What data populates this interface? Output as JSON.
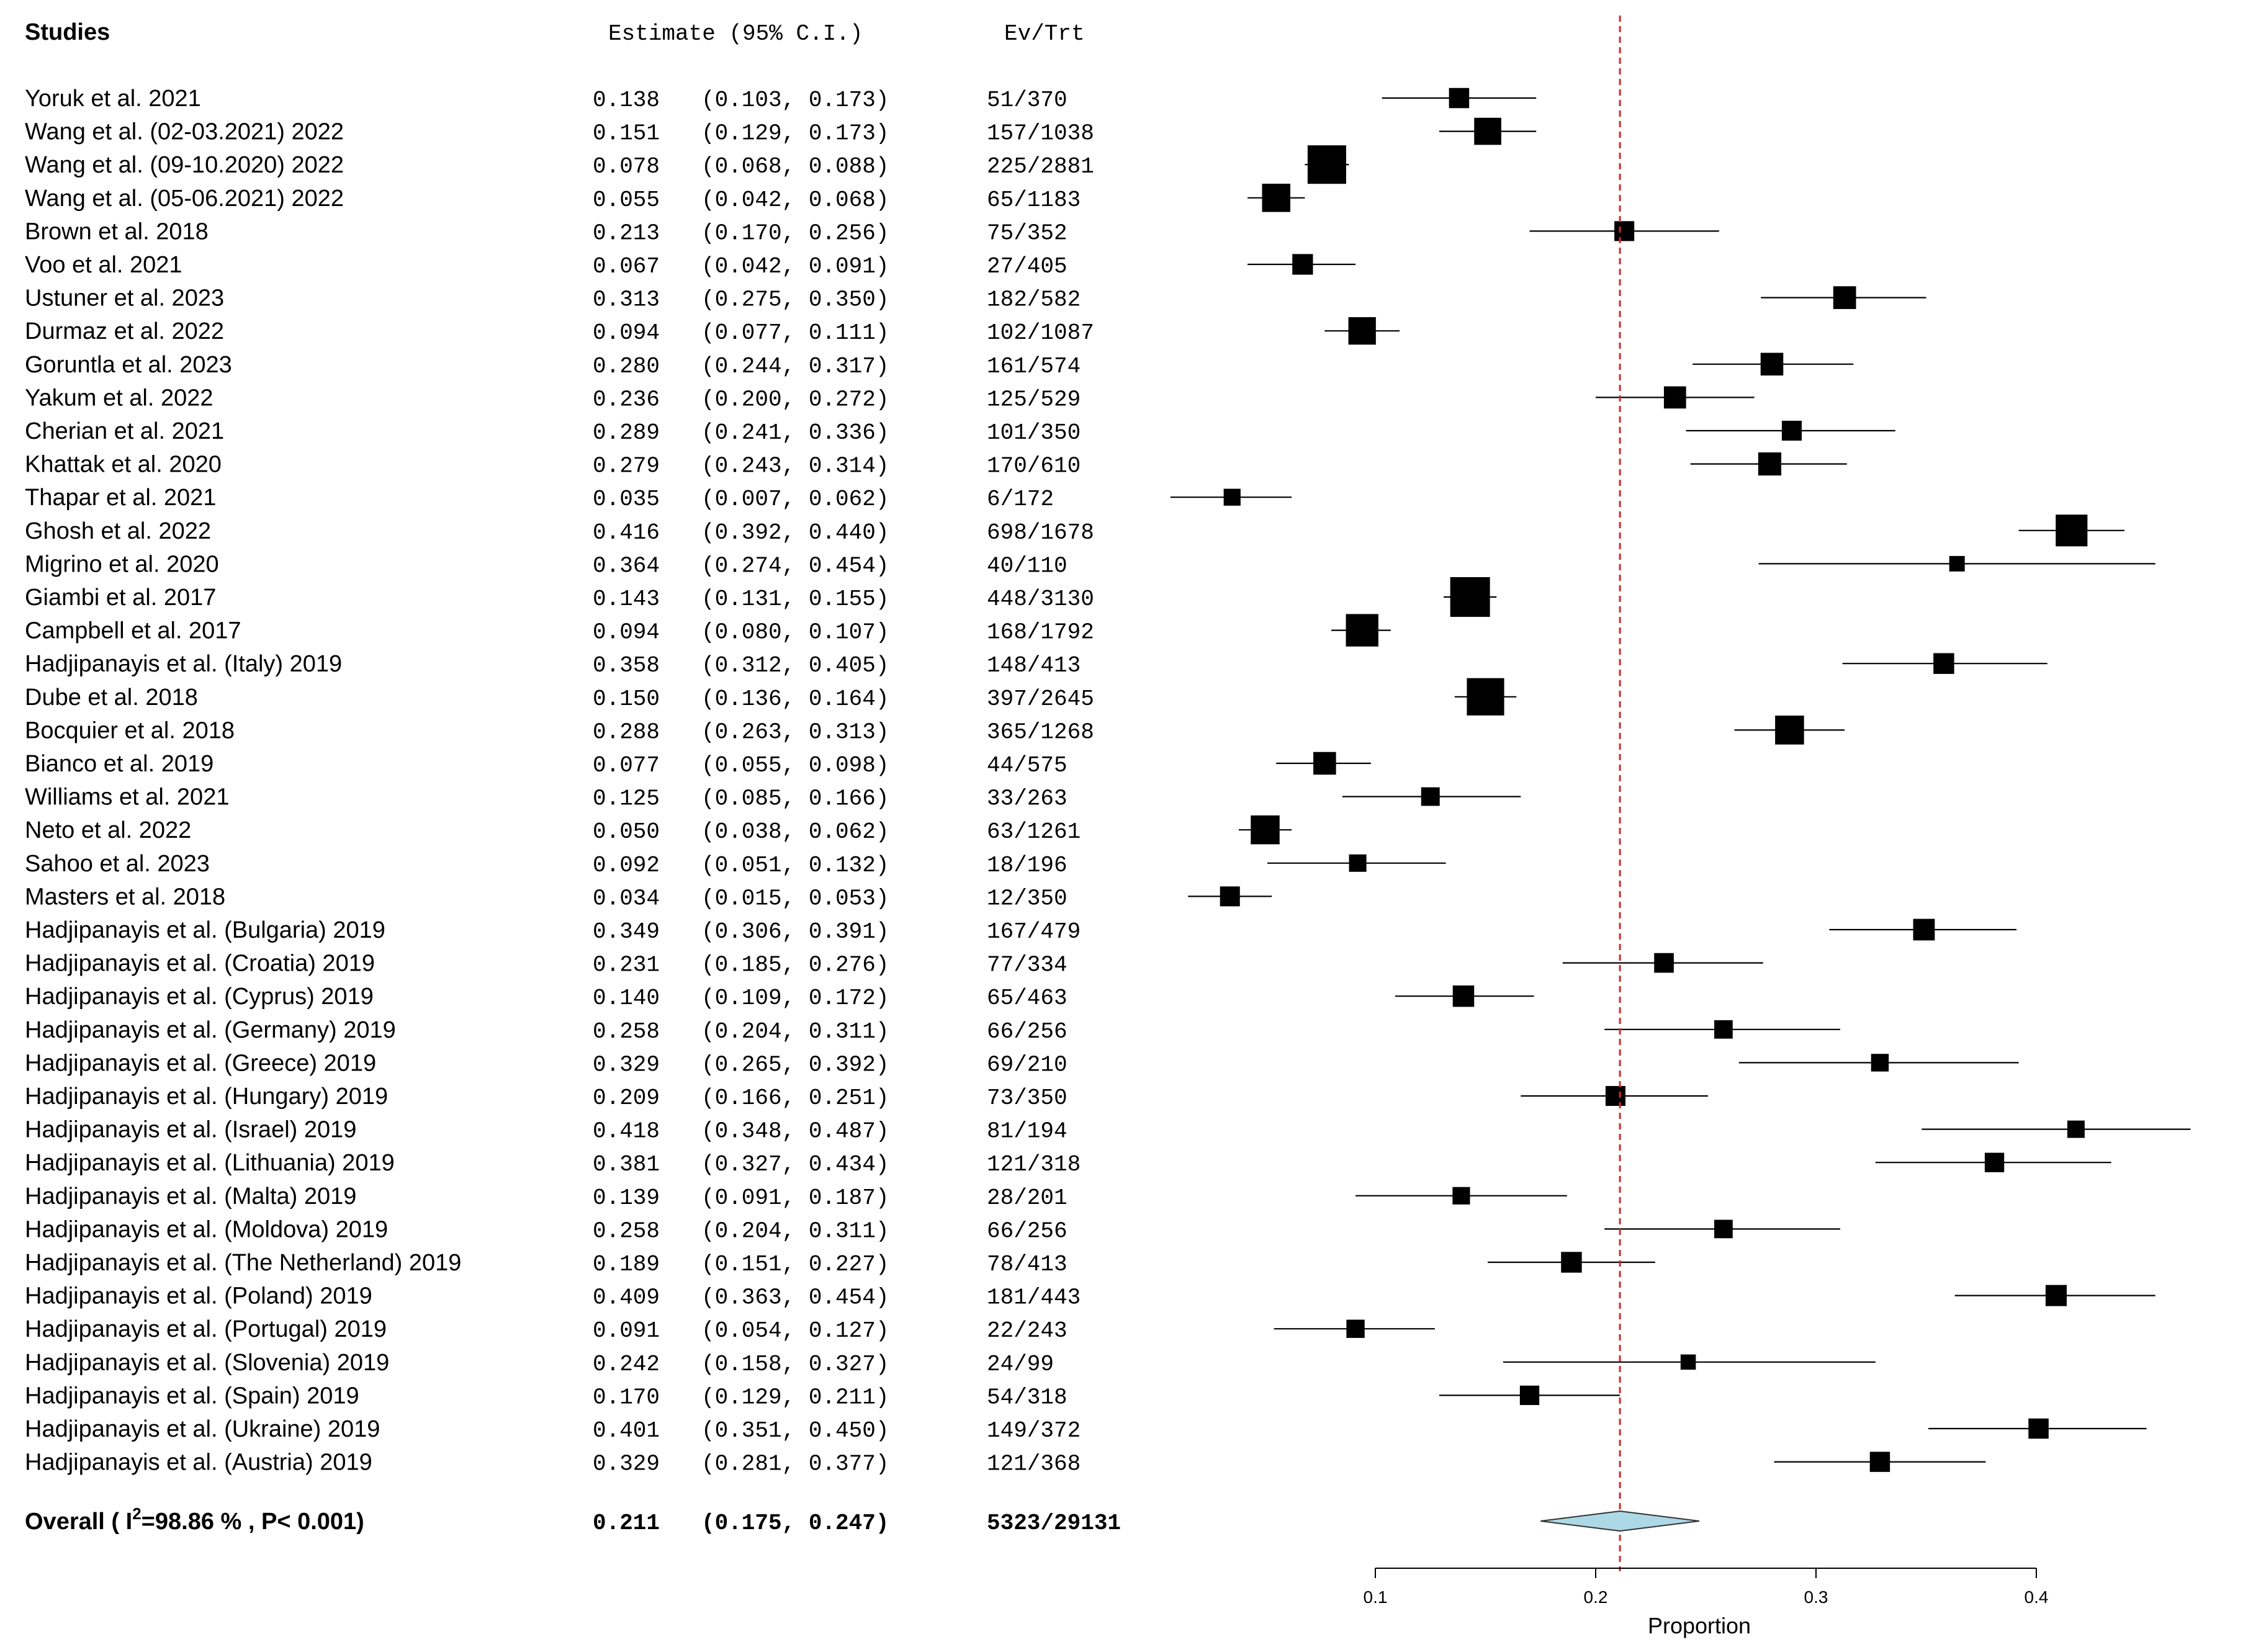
{
  "headers": {
    "studies": "Studies",
    "estimate": "Estimate (95% C.I.)",
    "evtrt": "Ev/Trt"
  },
  "chart_data": {
    "type": "forest",
    "xlabel": "Proportion",
    "xlim": [
      0.0,
      0.47
    ],
    "xticks": [
      0.1,
      0.2,
      0.3,
      0.4
    ],
    "xtick_labels": [
      "0.1",
      "0.2",
      "0.3",
      "0.4"
    ],
    "reference_line": 0.211,
    "reference_line_color": "#d62728",
    "marker_color": "#000000",
    "diamond_color": "#add8e6",
    "studies": [
      {
        "label": "Yoruk et al. 2021",
        "estimate": 0.138,
        "lower": 0.103,
        "upper": 0.173,
        "est_text": "0.138",
        "ci_text": "(0.103, 0.173)",
        "evtrt": "51/370",
        "n": 370
      },
      {
        "label": "Wang et al. (02-03.2021) 2022",
        "estimate": 0.151,
        "lower": 0.129,
        "upper": 0.173,
        "est_text": "0.151",
        "ci_text": "(0.129, 0.173)",
        "evtrt": "157/1038",
        "n": 1038
      },
      {
        "label": "Wang et al. (09-10.2020) 2022",
        "estimate": 0.078,
        "lower": 0.068,
        "upper": 0.088,
        "est_text": "0.078",
        "ci_text": "(0.068, 0.088)",
        "evtrt": "225/2881",
        "n": 2881
      },
      {
        "label": "Wang et al. (05-06.2021) 2022",
        "estimate": 0.055,
        "lower": 0.042,
        "upper": 0.068,
        "est_text": "0.055",
        "ci_text": "(0.042, 0.068)",
        "evtrt": "65/1183",
        "n": 1183
      },
      {
        "label": "Brown et al. 2018",
        "estimate": 0.213,
        "lower": 0.17,
        "upper": 0.256,
        "est_text": "0.213",
        "ci_text": "(0.170, 0.256)",
        "evtrt": "75/352",
        "n": 352
      },
      {
        "label": "Voo et al. 2021",
        "estimate": 0.067,
        "lower": 0.042,
        "upper": 0.091,
        "est_text": "0.067",
        "ci_text": "(0.042, 0.091)",
        "evtrt": "27/405",
        "n": 405
      },
      {
        "label": "Ustuner et al. 2023",
        "estimate": 0.313,
        "lower": 0.275,
        "upper": 0.35,
        "est_text": "0.313",
        "ci_text": "(0.275, 0.350)",
        "evtrt": "182/582",
        "n": 582
      },
      {
        "label": "Durmaz et al. 2022",
        "estimate": 0.094,
        "lower": 0.077,
        "upper": 0.111,
        "est_text": "0.094",
        "ci_text": "(0.077, 0.111)",
        "evtrt": "102/1087",
        "n": 1087
      },
      {
        "label": "Goruntla et al. 2023",
        "estimate": 0.28,
        "lower": 0.244,
        "upper": 0.317,
        "est_text": "0.280",
        "ci_text": "(0.244, 0.317)",
        "evtrt": "161/574",
        "n": 574
      },
      {
        "label": "Yakum et al. 2022",
        "estimate": 0.236,
        "lower": 0.2,
        "upper": 0.272,
        "est_text": "0.236",
        "ci_text": "(0.200, 0.272)",
        "evtrt": "125/529",
        "n": 529
      },
      {
        "label": "Cherian et al. 2021",
        "estimate": 0.289,
        "lower": 0.241,
        "upper": 0.336,
        "est_text": "0.289",
        "ci_text": "(0.241, 0.336)",
        "evtrt": "101/350",
        "n": 350
      },
      {
        "label": "Khattak et al. 2020",
        "estimate": 0.279,
        "lower": 0.243,
        "upper": 0.314,
        "est_text": "0.279",
        "ci_text": "(0.243, 0.314)",
        "evtrt": "170/610",
        "n": 610
      },
      {
        "label": "Thapar et al. 2021",
        "estimate": 0.035,
        "lower": 0.007,
        "upper": 0.062,
        "est_text": "0.035",
        "ci_text": "(0.007, 0.062)",
        "evtrt": "6/172",
        "n": 172
      },
      {
        "label": "Ghosh et al. 2022",
        "estimate": 0.416,
        "lower": 0.392,
        "upper": 0.44,
        "est_text": "0.416",
        "ci_text": "(0.392, 0.440)",
        "evtrt": "698/1678",
        "n": 1678
      },
      {
        "label": "Migrino et al. 2020",
        "estimate": 0.364,
        "lower": 0.274,
        "upper": 0.454,
        "est_text": "0.364",
        "ci_text": "(0.274, 0.454)",
        "evtrt": "40/110",
        "n": 110
      },
      {
        "label": "Giambi et al. 2017",
        "estimate": 0.143,
        "lower": 0.131,
        "upper": 0.155,
        "est_text": "0.143",
        "ci_text": "(0.131, 0.155)",
        "evtrt": "448/3130",
        "n": 3130
      },
      {
        "label": "Campbell et al. 2017",
        "estimate": 0.094,
        "lower": 0.08,
        "upper": 0.107,
        "est_text": "0.094",
        "ci_text": "(0.080, 0.107)",
        "evtrt": "168/1792",
        "n": 1792
      },
      {
        "label": "Hadjipanayis et al. (Italy) 2019",
        "estimate": 0.358,
        "lower": 0.312,
        "upper": 0.405,
        "est_text": "0.358",
        "ci_text": "(0.312, 0.405)",
        "evtrt": "148/413",
        "n": 413
      },
      {
        "label": "Dube et al. 2018",
        "estimate": 0.15,
        "lower": 0.136,
        "upper": 0.164,
        "est_text": "0.150",
        "ci_text": "(0.136, 0.164)",
        "evtrt": "397/2645",
        "n": 2645
      },
      {
        "label": "Bocquier et al. 2018",
        "estimate": 0.288,
        "lower": 0.263,
        "upper": 0.313,
        "est_text": "0.288",
        "ci_text": "(0.263, 0.313)",
        "evtrt": "365/1268",
        "n": 1268
      },
      {
        "label": "Bianco et al. 2019",
        "estimate": 0.077,
        "lower": 0.055,
        "upper": 0.098,
        "est_text": "0.077",
        "ci_text": "(0.055, 0.098)",
        "evtrt": "44/575",
        "n": 575
      },
      {
        "label": "Williams et al. 2021",
        "estimate": 0.125,
        "lower": 0.085,
        "upper": 0.166,
        "est_text": "0.125",
        "ci_text": "(0.085, 0.166)",
        "evtrt": "33/263",
        "n": 263
      },
      {
        "label": "Neto et al. 2022",
        "estimate": 0.05,
        "lower": 0.038,
        "upper": 0.062,
        "est_text": "0.050",
        "ci_text": "(0.038, 0.062)",
        "evtrt": "63/1261",
        "n": 1261
      },
      {
        "label": "Sahoo et al. 2023",
        "estimate": 0.092,
        "lower": 0.051,
        "upper": 0.132,
        "est_text": "0.092",
        "ci_text": "(0.051, 0.132)",
        "evtrt": "18/196",
        "n": 196
      },
      {
        "label": "Masters et al. 2018",
        "estimate": 0.034,
        "lower": 0.015,
        "upper": 0.053,
        "est_text": "0.034",
        "ci_text": "(0.015, 0.053)",
        "evtrt": "12/350",
        "n": 350
      },
      {
        "label": "Hadjipanayis et al. (Bulgaria) 2019",
        "estimate": 0.349,
        "lower": 0.306,
        "upper": 0.391,
        "est_text": "0.349",
        "ci_text": "(0.306, 0.391)",
        "evtrt": "167/479",
        "n": 479
      },
      {
        "label": "Hadjipanayis et al. (Croatia) 2019",
        "estimate": 0.231,
        "lower": 0.185,
        "upper": 0.276,
        "est_text": "0.231",
        "ci_text": "(0.185, 0.276)",
        "evtrt": "77/334",
        "n": 334
      },
      {
        "label": "Hadjipanayis et al. (Cyprus) 2019",
        "estimate": 0.14,
        "lower": 0.109,
        "upper": 0.172,
        "est_text": "0.140",
        "ci_text": "(0.109, 0.172)",
        "evtrt": "65/463",
        "n": 463
      },
      {
        "label": "Hadjipanayis et al. (Germany) 2019",
        "estimate": 0.258,
        "lower": 0.204,
        "upper": 0.311,
        "est_text": "0.258",
        "ci_text": "(0.204, 0.311)",
        "evtrt": "66/256",
        "n": 256
      },
      {
        "label": "Hadjipanayis et al. (Greece)  2019",
        "estimate": 0.329,
        "lower": 0.265,
        "upper": 0.392,
        "est_text": "0.329",
        "ci_text": "(0.265, 0.392)",
        "evtrt": "69/210",
        "n": 210
      },
      {
        "label": "Hadjipanayis et al. (Hungary) 2019",
        "estimate": 0.209,
        "lower": 0.166,
        "upper": 0.251,
        "est_text": "0.209",
        "ci_text": "(0.166, 0.251)",
        "evtrt": "73/350",
        "n": 350
      },
      {
        "label": "Hadjipanayis et al. (Israel) 2019",
        "estimate": 0.418,
        "lower": 0.348,
        "upper": 0.487,
        "est_text": "0.418",
        "ci_text": "(0.348, 0.487)",
        "evtrt": "81/194",
        "n": 194
      },
      {
        "label": "Hadjipanayis et al. (Lithuania)  2019",
        "estimate": 0.381,
        "lower": 0.327,
        "upper": 0.434,
        "est_text": "0.381",
        "ci_text": "(0.327, 0.434)",
        "evtrt": "121/318",
        "n": 318
      },
      {
        "label": "Hadjipanayis et al. (Malta)  2019",
        "estimate": 0.139,
        "lower": 0.091,
        "upper": 0.187,
        "est_text": "0.139",
        "ci_text": "(0.091, 0.187)",
        "evtrt": "28/201",
        "n": 201
      },
      {
        "label": "Hadjipanayis et al. (Moldova)  2019",
        "estimate": 0.258,
        "lower": 0.204,
        "upper": 0.311,
        "est_text": "0.258",
        "ci_text": "(0.204, 0.311)",
        "evtrt": "66/256",
        "n": 256
      },
      {
        "label": "Hadjipanayis et al. (The Netherland)  2019",
        "estimate": 0.189,
        "lower": 0.151,
        "upper": 0.227,
        "est_text": "0.189",
        "ci_text": "(0.151, 0.227)",
        "evtrt": "78/413",
        "n": 413
      },
      {
        "label": "Hadjipanayis et al. (Poland)  2019",
        "estimate": 0.409,
        "lower": 0.363,
        "upper": 0.454,
        "est_text": "0.409",
        "ci_text": "(0.363, 0.454)",
        "evtrt": "181/443",
        "n": 443
      },
      {
        "label": "Hadjipanayis et al. (Portugal) 2019",
        "estimate": 0.091,
        "lower": 0.054,
        "upper": 0.127,
        "est_text": "0.091",
        "ci_text": "(0.054, 0.127)",
        "evtrt": "22/243",
        "n": 243
      },
      {
        "label": "Hadjipanayis et al. (Slovenia)  2019",
        "estimate": 0.242,
        "lower": 0.158,
        "upper": 0.327,
        "est_text": "0.242",
        "ci_text": "(0.158, 0.327)",
        "evtrt": "24/99",
        "n": 99
      },
      {
        "label": "Hadjipanayis et al. (Spain)  2019",
        "estimate": 0.17,
        "lower": 0.129,
        "upper": 0.211,
        "est_text": "0.170",
        "ci_text": "(0.129, 0.211)",
        "evtrt": "54/318",
        "n": 318
      },
      {
        "label": "Hadjipanayis et al. (Ukraine) 2019",
        "estimate": 0.401,
        "lower": 0.351,
        "upper": 0.45,
        "est_text": "0.401",
        "ci_text": "(0.351, 0.450)",
        "evtrt": "149/372",
        "n": 372
      },
      {
        "label": "Hadjipanayis et al. (Austria) 2019",
        "estimate": 0.329,
        "lower": 0.281,
        "upper": 0.377,
        "est_text": "0.329",
        "ci_text": "(0.281, 0.377)",
        "evtrt": "121/368",
        "n": 368
      }
    ],
    "overall": {
      "label_prefix": "Overall ( ",
      "label_i": "I",
      "label_sup": "2",
      "label_suffix": "=98.86 % , P< 0.001)",
      "estimate": 0.211,
      "lower": 0.175,
      "upper": 0.247,
      "est_text": "0.211",
      "ci_text": "(0.175, 0.247)",
      "evtrt": "5323/29131"
    }
  }
}
